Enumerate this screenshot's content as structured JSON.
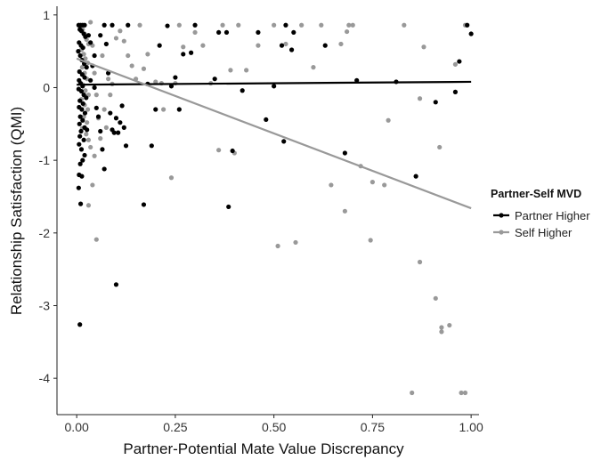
{
  "chart_data": {
    "type": "scatter",
    "title": "",
    "xlabel": "Partner-Potential Mate Value Discrepancy",
    "ylabel": "Relationship Satisfaction (QMI)",
    "xlim": [
      -0.05,
      1.02
    ],
    "ylim": [
      -4.5,
      1.12
    ],
    "x_ticks": [
      0,
      0.25,
      0.5,
      0.75,
      1
    ],
    "x_tick_labels": [
      "0.00",
      "0.25",
      "0.50",
      "0.75",
      "1.00"
    ],
    "y_ticks": [
      1,
      0,
      -1,
      -2,
      -3,
      -4
    ],
    "y_tick_labels": [
      "1",
      "0",
      "-1",
      "-2",
      "-3",
      "-4"
    ],
    "grid": false,
    "legend": {
      "title": "Partner-Self MVD",
      "position": "right"
    },
    "series": [
      {
        "name": "Partner Higher",
        "color": "#000000",
        "trend": {
          "x": [
            0,
            1
          ],
          "y": [
            0.04,
            0.08
          ]
        },
        "points": [
          [
            0.005,
            0.86
          ],
          [
            0.01,
            0.86
          ],
          [
            0.015,
            0.86
          ],
          [
            0.02,
            0.86
          ],
          [
            0.008,
            0.8
          ],
          [
            0.012,
            0.78
          ],
          [
            0.018,
            0.74
          ],
          [
            0.022,
            0.7
          ],
          [
            0.006,
            0.62
          ],
          [
            0.011,
            0.58
          ],
          [
            0.016,
            0.55
          ],
          [
            0.03,
            0.72
          ],
          [
            0.004,
            0.5
          ],
          [
            0.009,
            0.44
          ],
          [
            0.013,
            0.38
          ],
          [
            0.019,
            0.33
          ],
          [
            0.025,
            0.28
          ],
          [
            0.007,
            0.22
          ],
          [
            0.014,
            0.18
          ],
          [
            0.02,
            0.14
          ],
          [
            0.006,
            0.1
          ],
          [
            0.01,
            0.06
          ],
          [
            0.015,
            0.02
          ],
          [
            0.005,
            -0.02
          ],
          [
            0.012,
            -0.05
          ],
          [
            0.018,
            -0.1
          ],
          [
            0.024,
            -0.14
          ],
          [
            0.008,
            -0.18
          ],
          [
            0.016,
            -0.22
          ],
          [
            0.006,
            -0.27
          ],
          [
            0.013,
            -0.3
          ],
          [
            0.021,
            -0.35
          ],
          [
            0.009,
            -0.4
          ],
          [
            0.015,
            -0.45
          ],
          [
            0.007,
            -0.5
          ],
          [
            0.02,
            -0.55
          ],
          [
            0.011,
            -0.6
          ],
          [
            0.026,
            -0.58
          ],
          [
            0.008,
            -0.67
          ],
          [
            0.018,
            -0.72
          ],
          [
            0.006,
            -0.78
          ],
          [
            0.012,
            -0.85
          ],
          [
            0.02,
            -0.93
          ],
          [
            0.015,
            -1.0
          ],
          [
            0.009,
            -1.05
          ],
          [
            0.006,
            -1.2
          ],
          [
            0.013,
            -1.22
          ],
          [
            0.005,
            -1.38
          ],
          [
            0.01,
            -1.6
          ],
          [
            0.008,
            -3.26
          ],
          [
            0.035,
            0.62
          ],
          [
            0.04,
            0.3
          ],
          [
            0.045,
            0.0
          ],
          [
            0.05,
            -0.28
          ],
          [
            0.055,
            -0.4
          ],
          [
            0.06,
            -0.6
          ],
          [
            0.065,
            -0.85
          ],
          [
            0.07,
            -1.12
          ],
          [
            0.075,
            0.6
          ],
          [
            0.08,
            0.2
          ],
          [
            0.085,
            -0.35
          ],
          [
            0.09,
            -0.58
          ],
          [
            0.095,
            -0.62
          ],
          [
            0.1,
            -0.42
          ],
          [
            0.105,
            -0.62
          ],
          [
            0.11,
            -0.48
          ],
          [
            0.115,
            -0.25
          ],
          [
            0.12,
            -0.55
          ],
          [
            0.125,
            -0.8
          ],
          [
            0.035,
            0.1
          ],
          [
            0.045,
            0.44
          ],
          [
            0.06,
            0.72
          ],
          [
            0.07,
            0.86
          ],
          [
            0.09,
            0.86
          ],
          [
            0.1,
            -2.71
          ],
          [
            0.13,
            0.86
          ],
          [
            0.17,
            -1.61
          ],
          [
            0.18,
            0.05
          ],
          [
            0.19,
            -0.8
          ],
          [
            0.2,
            -0.3
          ],
          [
            0.21,
            0.58
          ],
          [
            0.23,
            0.85
          ],
          [
            0.24,
            0.02
          ],
          [
            0.25,
            0.14
          ],
          [
            0.26,
            -0.3
          ],
          [
            0.27,
            0.46
          ],
          [
            0.29,
            0.48
          ],
          [
            0.3,
            0.86
          ],
          [
            0.35,
            0.12
          ],
          [
            0.36,
            0.76
          ],
          [
            0.38,
            0.76
          ],
          [
            0.385,
            -1.64
          ],
          [
            0.395,
            -0.87
          ],
          [
            0.42,
            -0.04
          ],
          [
            0.46,
            0.76
          ],
          [
            0.48,
            -0.44
          ],
          [
            0.5,
            0.02
          ],
          [
            0.52,
            0.58
          ],
          [
            0.525,
            -0.74
          ],
          [
            0.53,
            0.86
          ],
          [
            0.545,
            0.52
          ],
          [
            0.55,
            0.76
          ],
          [
            0.63,
            0.58
          ],
          [
            0.68,
            -0.9
          ],
          [
            0.71,
            0.1
          ],
          [
            0.81,
            0.08
          ],
          [
            0.86,
            -1.22
          ],
          [
            0.91,
            -0.2
          ],
          [
            0.96,
            -0.06
          ],
          [
            0.97,
            0.36
          ],
          [
            0.99,
            0.86
          ],
          [
            1.0,
            0.74
          ]
        ]
      },
      {
        "name": "Self Higher",
        "color": "#999999",
        "trend": {
          "x": [
            0,
            1
          ],
          "y": [
            0.4,
            -1.66
          ]
        },
        "points": [
          [
            0.01,
            0.84
          ],
          [
            0.015,
            0.8
          ],
          [
            0.02,
            0.74
          ],
          [
            0.025,
            0.66
          ],
          [
            0.03,
            0.6
          ],
          [
            0.012,
            0.52
          ],
          [
            0.018,
            0.46
          ],
          [
            0.022,
            0.4
          ],
          [
            0.028,
            0.34
          ],
          [
            0.014,
            0.28
          ],
          [
            0.02,
            0.2
          ],
          [
            0.026,
            0.12
          ],
          [
            0.016,
            0.04
          ],
          [
            0.022,
            -0.04
          ],
          [
            0.03,
            -0.1
          ],
          [
            0.012,
            -0.16
          ],
          [
            0.02,
            -0.24
          ],
          [
            0.028,
            -0.3
          ],
          [
            0.018,
            -0.4
          ],
          [
            0.026,
            -0.48
          ],
          [
            0.014,
            -0.56
          ],
          [
            0.024,
            -0.64
          ],
          [
            0.03,
            -0.72
          ],
          [
            0.035,
            0.9
          ],
          [
            0.04,
            0.58
          ],
          [
            0.045,
            0.2
          ],
          [
            0.05,
            -0.1
          ],
          [
            0.055,
            -0.42
          ],
          [
            0.06,
            -0.7
          ],
          [
            0.065,
            0.44
          ],
          [
            0.07,
            -0.3
          ],
          [
            0.075,
            -0.55
          ],
          [
            0.08,
            0.12
          ],
          [
            0.085,
            -0.1
          ],
          [
            0.09,
            0.05
          ],
          [
            0.1,
            0.68
          ],
          [
            0.11,
            0.78
          ],
          [
            0.12,
            0.64
          ],
          [
            0.13,
            0.44
          ],
          [
            0.14,
            0.3
          ],
          [
            0.15,
            0.12
          ],
          [
            0.04,
            -1.34
          ],
          [
            0.03,
            -1.62
          ],
          [
            0.05,
            -2.09
          ],
          [
            0.045,
            -0.94
          ],
          [
            0.035,
            -0.82
          ],
          [
            0.16,
            0.86
          ],
          [
            0.17,
            0.26
          ],
          [
            0.18,
            0.46
          ],
          [
            0.2,
            0.08
          ],
          [
            0.215,
            0.06
          ],
          [
            0.22,
            -0.3
          ],
          [
            0.24,
            -1.24
          ],
          [
            0.25,
            0.06
          ],
          [
            0.26,
            0.86
          ],
          [
            0.27,
            0.56
          ],
          [
            0.3,
            0.76
          ],
          [
            0.32,
            0.58
          ],
          [
            0.34,
            0.06
          ],
          [
            0.36,
            -0.86
          ],
          [
            0.37,
            0.86
          ],
          [
            0.39,
            0.24
          ],
          [
            0.4,
            -0.9
          ],
          [
            0.41,
            0.86
          ],
          [
            0.43,
            0.24
          ],
          [
            0.46,
            0.58
          ],
          [
            0.5,
            0.86
          ],
          [
            0.51,
            -2.18
          ],
          [
            0.53,
            0.6
          ],
          [
            0.555,
            -2.13
          ],
          [
            0.57,
            0.86
          ],
          [
            0.6,
            0.28
          ],
          [
            0.62,
            0.86
          ],
          [
            0.645,
            -1.34
          ],
          [
            0.67,
            0.6
          ],
          [
            0.68,
            -1.7
          ],
          [
            0.685,
            0.77
          ],
          [
            0.69,
            0.86
          ],
          [
            0.7,
            0.86
          ],
          [
            0.72,
            -1.08
          ],
          [
            0.745,
            -2.1
          ],
          [
            0.75,
            -1.3
          ],
          [
            0.78,
            -1.34
          ],
          [
            0.79,
            -0.45
          ],
          [
            0.83,
            0.86
          ],
          [
            0.85,
            -4.2
          ],
          [
            0.87,
            -2.4
          ],
          [
            0.87,
            -0.15
          ],
          [
            0.91,
            -2.9
          ],
          [
            0.92,
            -0.82
          ],
          [
            0.925,
            -3.3
          ],
          [
            0.925,
            -3.36
          ],
          [
            0.945,
            -3.27
          ],
          [
            0.96,
            0.32
          ],
          [
            0.975,
            -4.2
          ],
          [
            0.985,
            -4.2
          ],
          [
            0.985,
            0.86
          ],
          [
            0.88,
            0.56
          ]
        ]
      }
    ]
  }
}
